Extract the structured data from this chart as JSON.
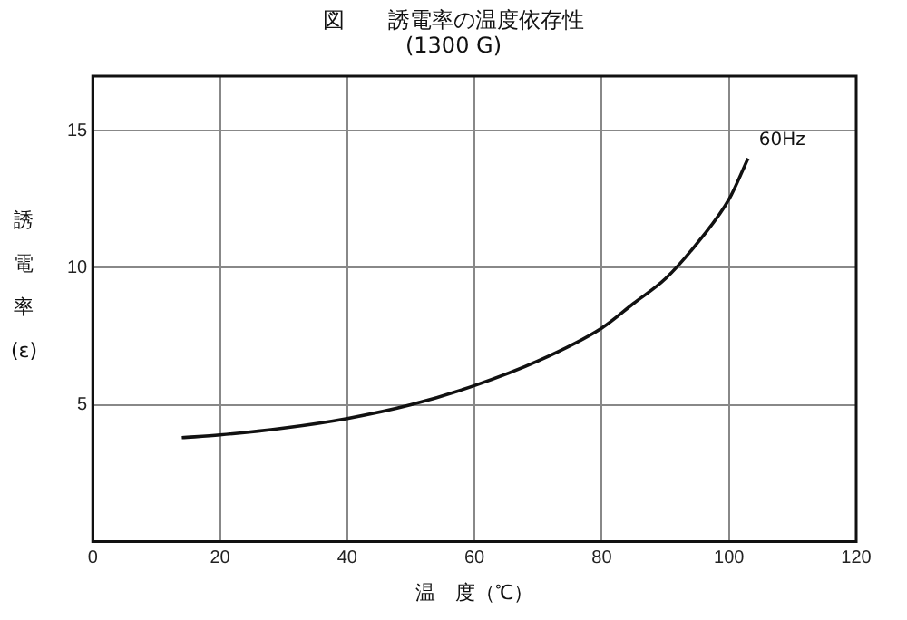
{
  "chart_data": {
    "type": "line",
    "title": "図　　誘電率の温度依存性",
    "subtitle": "(1300 G)",
    "xlabel": "温　度（℃）",
    "ylabel": "誘電率(ε)",
    "xlim": [
      0,
      120
    ],
    "xticks": [
      0,
      20,
      40,
      60,
      80,
      100,
      120
    ],
    "ylim": [
      0,
      17
    ],
    "yticks": [
      {
        "value": 0,
        "label": null
      },
      5,
      10,
      15
    ],
    "grid": true,
    "legend": false,
    "marker": "none",
    "line_style": "solid",
    "series": [
      {
        "name": "60Hz",
        "color": "#111111",
        "x": [
          14,
          20,
          30,
          40,
          50,
          60,
          70,
          80,
          85,
          90,
          95,
          100,
          103
        ],
        "values": [
          3.8,
          3.9,
          4.15,
          4.5,
          5.0,
          5.7,
          6.6,
          7.8,
          8.7,
          9.6,
          10.9,
          12.5,
          14.0
        ]
      }
    ]
  }
}
